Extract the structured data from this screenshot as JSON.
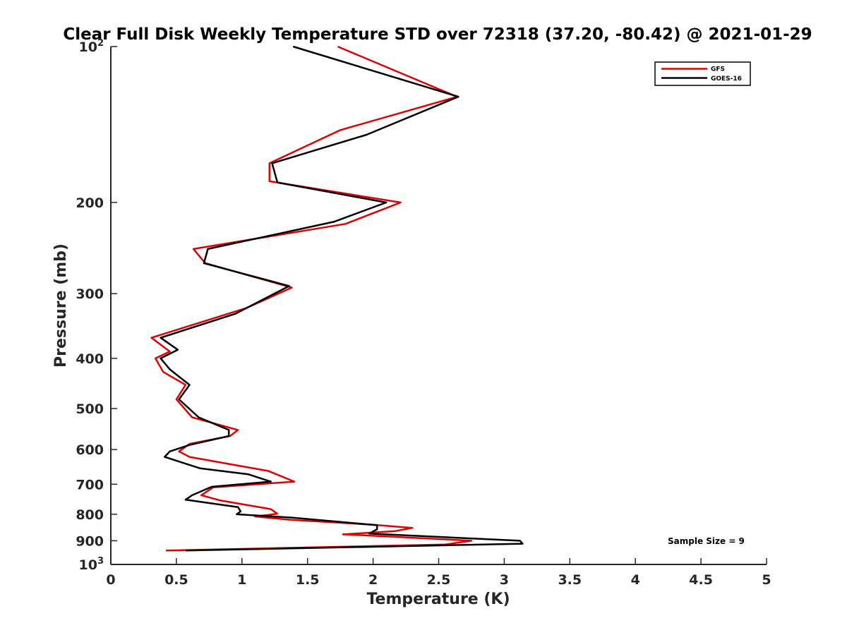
{
  "chart_data": {
    "type": "line",
    "title": "Clear Full Disk Weekly Temperature STD over 72318 (37.20, -80.42) @ 2021-01-29",
    "xlabel": "Temperature (K)",
    "ylabel": "Pressure (mb)",
    "xlim": [
      0,
      5
    ],
    "ylim": [
      100,
      1000
    ],
    "y_scale": "log",
    "y_reversed": true,
    "x_ticks": [
      {
        "value": 0,
        "label": "0"
      },
      {
        "value": 0.5,
        "label": "0.5"
      },
      {
        "value": 1,
        "label": "1"
      },
      {
        "value": 1.5,
        "label": "1.5"
      },
      {
        "value": 2,
        "label": "2"
      },
      {
        "value": 2.5,
        "label": "2.5"
      },
      {
        "value": 3,
        "label": "3"
      },
      {
        "value": 3.5,
        "label": "3.5"
      },
      {
        "value": 4,
        "label": "4"
      },
      {
        "value": 4.5,
        "label": "4.5"
      },
      {
        "value": 5,
        "label": "5"
      }
    ],
    "y_ticks": [
      {
        "value": 100,
        "base": "10",
        "exp": "2"
      },
      {
        "value": 200,
        "base": "200",
        "exp": ""
      },
      {
        "value": 300,
        "base": "300",
        "exp": ""
      },
      {
        "value": 400,
        "base": "400",
        "exp": ""
      },
      {
        "value": 500,
        "base": "500",
        "exp": ""
      },
      {
        "value": 600,
        "base": "600",
        "exp": ""
      },
      {
        "value": 700,
        "base": "700",
        "exp": ""
      },
      {
        "value": 800,
        "base": "800",
        "exp": ""
      },
      {
        "value": 900,
        "base": "900",
        "exp": ""
      },
      {
        "value": 1000,
        "base": "10",
        "exp": "3"
      }
    ],
    "grid": false,
    "legend_position": "top-right",
    "series": [
      {
        "name": "GFS",
        "color": "#e00000",
        "points": [
          [
            1.73,
            100
          ],
          [
            2.64,
            125
          ],
          [
            1.75,
            145
          ],
          [
            1.21,
            168
          ],
          [
            1.21,
            182
          ],
          [
            2.21,
            200
          ],
          [
            1.79,
            220
          ],
          [
            0.63,
            246
          ],
          [
            0.72,
            262
          ],
          [
            1.38,
            292
          ],
          [
            1.03,
            320
          ],
          [
            0.31,
            365
          ],
          [
            0.45,
            388
          ],
          [
            0.34,
            400
          ],
          [
            0.4,
            425
          ],
          [
            0.57,
            450
          ],
          [
            0.5,
            480
          ],
          [
            0.62,
            520
          ],
          [
            0.97,
            550
          ],
          [
            0.91,
            565
          ],
          [
            0.6,
            585
          ],
          [
            0.52,
            605
          ],
          [
            0.6,
            620
          ],
          [
            1.2,
            660
          ],
          [
            1.4,
            692
          ],
          [
            0.78,
            710
          ],
          [
            0.69,
            735
          ],
          [
            0.83,
            752
          ],
          [
            1.22,
            782
          ],
          [
            1.27,
            798
          ],
          [
            1.1,
            808
          ],
          [
            1.37,
            820
          ],
          [
            2.0,
            838
          ],
          [
            2.3,
            850
          ],
          [
            2.17,
            862
          ],
          [
            1.77,
            875
          ],
          [
            2.07,
            882
          ],
          [
            2.75,
            900
          ],
          [
            2.55,
            915
          ],
          [
            0.42,
            940
          ]
        ]
      },
      {
        "name": "GOES-16",
        "color": "#000000",
        "points": [
          [
            1.39,
            100
          ],
          [
            2.65,
            125
          ],
          [
            1.95,
            148
          ],
          [
            1.23,
            168
          ],
          [
            1.27,
            183
          ],
          [
            2.1,
            200
          ],
          [
            1.7,
            218
          ],
          [
            0.74,
            246
          ],
          [
            0.71,
            262
          ],
          [
            1.36,
            290
          ],
          [
            0.95,
            328
          ],
          [
            0.38,
            365
          ],
          [
            0.51,
            385
          ],
          [
            0.38,
            400
          ],
          [
            0.45,
            420
          ],
          [
            0.6,
            450
          ],
          [
            0.52,
            480
          ],
          [
            0.67,
            520
          ],
          [
            0.9,
            550
          ],
          [
            0.9,
            565
          ],
          [
            0.6,
            588
          ],
          [
            0.45,
            605
          ],
          [
            0.41,
            620
          ],
          [
            0.68,
            652
          ],
          [
            1.05,
            670
          ],
          [
            1.22,
            692
          ],
          [
            0.77,
            708
          ],
          [
            0.62,
            735
          ],
          [
            0.57,
            750
          ],
          [
            0.97,
            775
          ],
          [
            0.99,
            790
          ],
          [
            0.96,
            800
          ],
          [
            1.38,
            812
          ],
          [
            2.03,
            840
          ],
          [
            2.03,
            855
          ],
          [
            1.97,
            872
          ],
          [
            3.12,
            900
          ],
          [
            3.14,
            912
          ],
          [
            0.57,
            940
          ]
        ]
      }
    ],
    "annotations": [
      {
        "text": "Sample Size = 9",
        "position": "bottom-right"
      }
    ]
  }
}
